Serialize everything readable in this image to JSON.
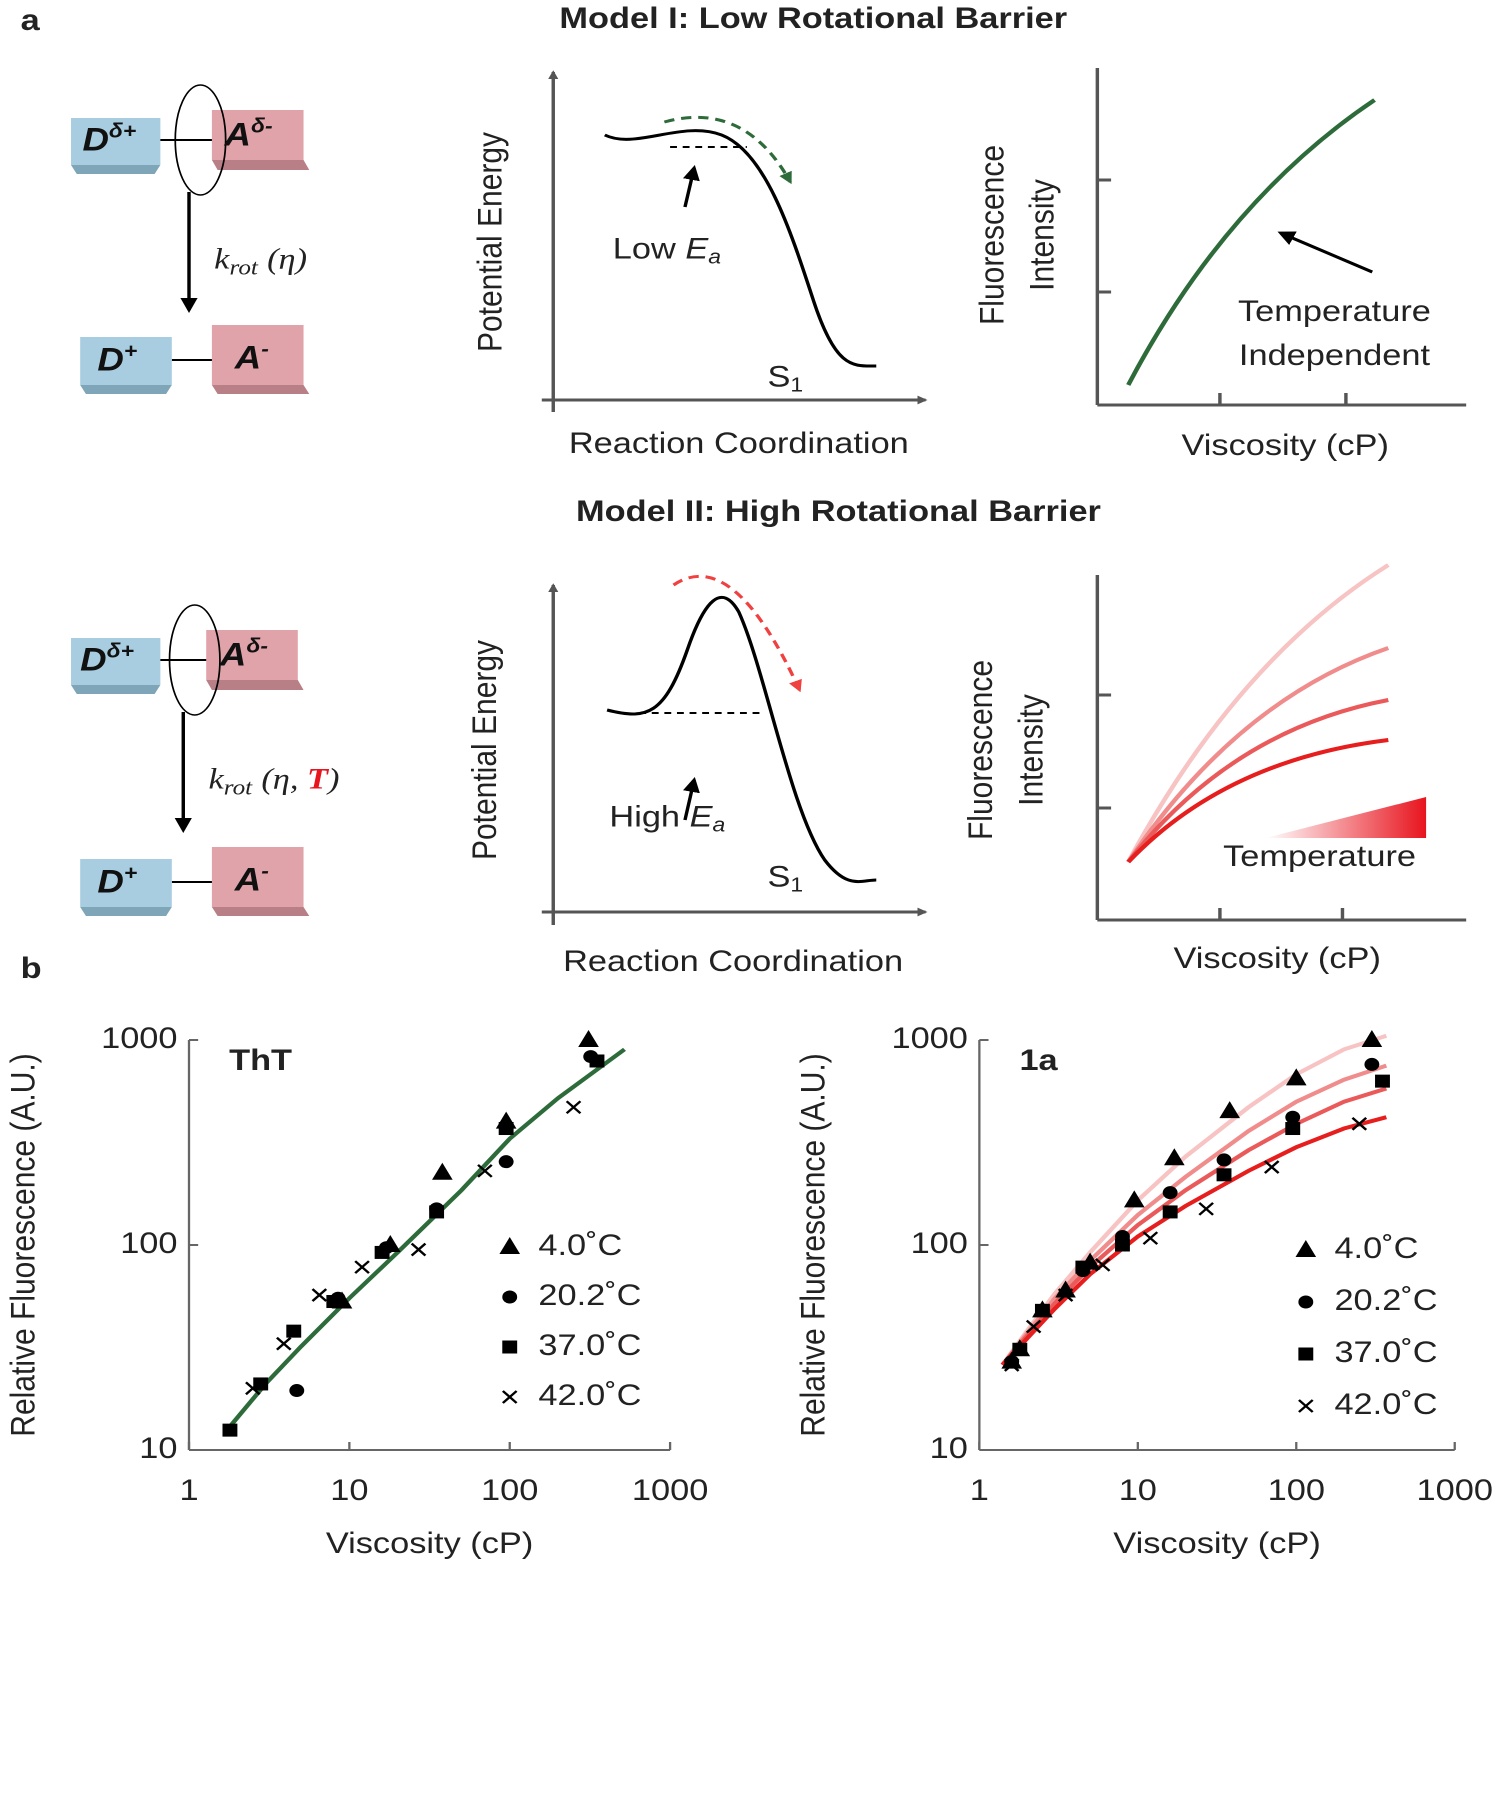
{
  "panel_labels": [
    "a",
    "b"
  ],
  "model_1": {
    "title": "Model I: Low Rotational Barrier",
    "donor": "D",
    "donor_sup": "δ+",
    "acceptor": "A",
    "acceptor_sup": "δ-",
    "donor_ct": "D",
    "donor_ct_sup": "+",
    "acceptor_ct": "A",
    "acceptor_ct_sup": "-",
    "rate": "k",
    "rate_sub": "rot",
    "rate_args": "(η)",
    "energy_ylabel": "Potential Energy",
    "energy_xlabel": "Reaction Coordination",
    "barrier_label": "Low ",
    "barrier_symbol": "E",
    "barrier_sub": "a",
    "state": "S",
    "state_sub": "1",
    "fl_ylabel": [
      "Fluorescence",
      "Intensity"
    ],
    "fl_xlabel": "Viscosity (cP)",
    "annotation": [
      "Temperature",
      "Independent"
    ]
  },
  "model_2": {
    "title": "Model II: High Rotational Barrier",
    "donor": "D",
    "donor_sup": "δ+",
    "acceptor": "A",
    "acceptor_sup": "δ-",
    "donor_ct": "D",
    "donor_ct_sup": "+",
    "acceptor_ct": "A",
    "acceptor_ct_sup": "-",
    "rate": "k",
    "rate_sub": "rot",
    "rate_args": [
      "(η, ",
      "T",
      ")"
    ],
    "energy_ylabel": "Potential Energy",
    "energy_xlabel": "Reaction Coordination",
    "barrier_label": "High ",
    "barrier_symbol": "E",
    "barrier_sub": "a",
    "state": "S",
    "state_sub": "1",
    "fl_ylabel": [
      "Fluorescence",
      "Intensity"
    ],
    "fl_xlabel": "Viscosity (cP)",
    "annotation": "Temperature"
  },
  "chart_data": [
    {
      "type": "scatter",
      "title": "ThT",
      "x_label": "Viscosity (cP)",
      "y_label": "Relative Fluorescence (A.U.)",
      "xscale": "log",
      "yscale": "log",
      "xlim": [
        1,
        1000
      ],
      "ylim": [
        10,
        1000
      ],
      "xticks": [
        1,
        10,
        100,
        1000
      ],
      "yticks": [
        10,
        100,
        1000
      ],
      "series": [
        {
          "name": "4.0˚C",
          "marker": "triangle",
          "color": "#000000",
          "x": [
            9,
            18,
            38,
            95,
            310
          ],
          "values": [
            53,
            100,
            225,
            400,
            1000
          ]
        },
        {
          "name": "20.2˚C",
          "marker": "circle",
          "color": "#000000",
          "x": [
            4.7,
            8.5,
            17,
            35,
            95,
            320
          ],
          "values": [
            19.5,
            55,
            97,
            150,
            255,
            830
          ]
        },
        {
          "name": "37.0˚C",
          "marker": "square",
          "color": "#000000",
          "x": [
            1.8,
            2.8,
            4.5,
            8,
            16,
            35,
            95,
            350
          ],
          "values": [
            12.5,
            21,
            38,
            53,
            92,
            145,
            370,
            790
          ]
        },
        {
          "name": "42.0˚C",
          "marker": "cross",
          "color": "#000000",
          "x": [
            2.5,
            3.9,
            6.5,
            12,
            27,
            70,
            250
          ],
          "values": [
            20,
            33,
            57,
            78,
            95,
            230,
            470
          ]
        }
      ],
      "fits": [
        {
          "color": "#2e6b3a",
          "x": [
            1.8,
            3,
            5,
            10,
            20,
            50,
            100,
            200,
            520
          ],
          "values": [
            13,
            21,
            32,
            55,
            92,
            185,
            330,
            520,
            900
          ]
        }
      ]
    },
    {
      "type": "scatter",
      "title": "1a",
      "x_label": "Viscosity (cP)",
      "y_label": "Relative Fluorescence (A.U.)",
      "xscale": "log",
      "yscale": "log",
      "xlim": [
        1,
        1000
      ],
      "ylim": [
        10,
        1000
      ],
      "xticks": [
        1,
        10,
        100,
        1000
      ],
      "yticks": [
        10,
        100,
        1000
      ],
      "series": [
        {
          "name": "4.0˚C",
          "marker": "triangle",
          "color": "#000000",
          "x": [
            1.6,
            1.8,
            2.5,
            3.5,
            5,
            9.5,
            17,
            38,
            100,
            300
          ],
          "values": [
            27,
            31,
            48,
            60,
            82,
            165,
            265,
            450,
            650,
            1000
          ]
        },
        {
          "name": "20.2˚C",
          "marker": "circle",
          "color": "#000000",
          "x": [
            1.6,
            2.5,
            4.5,
            8,
            16,
            35,
            95,
            300
          ],
          "values": [
            27,
            48,
            75,
            110,
            180,
            260,
            420,
            760
          ]
        },
        {
          "name": "37.0˚C",
          "marker": "square",
          "color": "#000000",
          "x": [
            1.8,
            2.5,
            4.5,
            8,
            16,
            35,
            95,
            350
          ],
          "values": [
            31,
            48,
            78,
            100,
            145,
            220,
            370,
            630
          ]
        },
        {
          "name": "42.0˚C",
          "marker": "cross",
          "color": "#000000",
          "x": [
            1.6,
            2.2,
            3.5,
            6,
            12,
            27,
            70,
            250
          ],
          "values": [
            26,
            40,
            57,
            80,
            108,
            150,
            240,
            390
          ]
        }
      ],
      "fits": [
        {
          "color": "#f7c3c3",
          "x": [
            1.4,
            2,
            3,
            5,
            10,
            20,
            50,
            100,
            200,
            370
          ],
          "values": [
            26,
            38,
            58,
            92,
            165,
            270,
            470,
            680,
            900,
            1050
          ]
        },
        {
          "color": "#f08c8c",
          "x": [
            1.4,
            2,
            3,
            5,
            10,
            20,
            50,
            100,
            200,
            370
          ],
          "values": [
            26,
            37,
            55,
            84,
            140,
            215,
            360,
            500,
            640,
            750
          ]
        },
        {
          "color": "#ea5a5a",
          "x": [
            1.4,
            2,
            3,
            5,
            10,
            20,
            50,
            100,
            200,
            370
          ],
          "values": [
            26,
            36,
            52,
            78,
            125,
            185,
            290,
            390,
            500,
            580
          ]
        },
        {
          "color": "#e61e1e",
          "x": [
            1.4,
            2,
            3,
            5,
            10,
            20,
            50,
            100,
            200,
            370
          ],
          "values": [
            26,
            35,
            49,
            72,
            110,
            155,
            230,
            300,
            370,
            420
          ]
        }
      ]
    }
  ]
}
